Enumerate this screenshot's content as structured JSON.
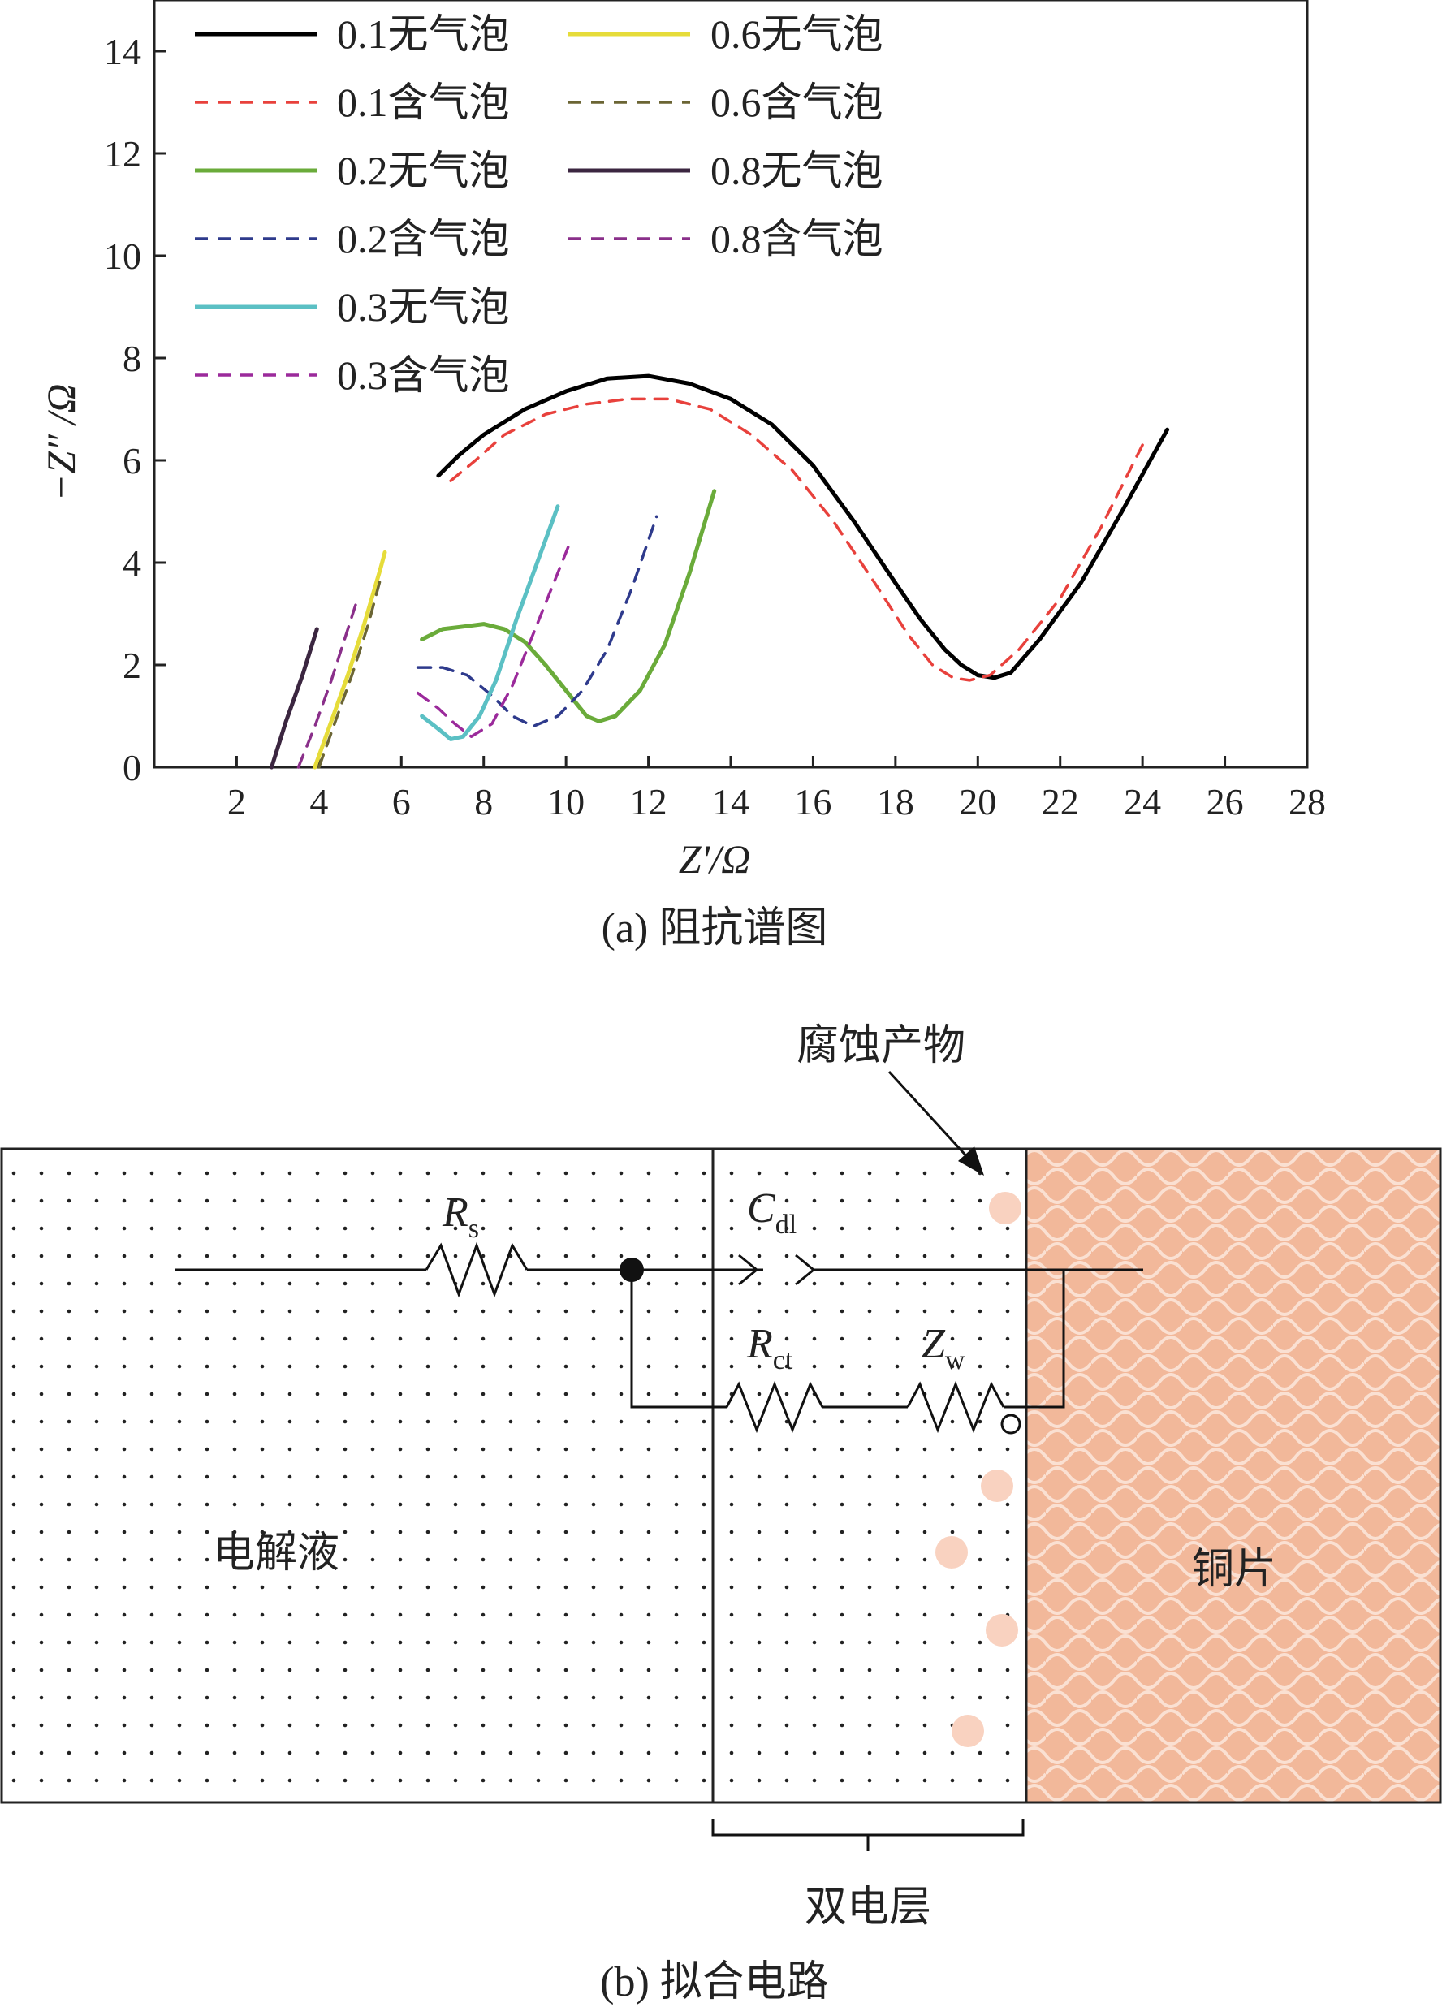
{
  "chart_data": {
    "type": "line",
    "xlabel": "Z'/Ω",
    "ylabel": "−Z″ /Ω",
    "xlim": [
      0,
      28
    ],
    "ylim": [
      0,
      15
    ],
    "xticks": [
      2,
      4,
      6,
      8,
      10,
      12,
      14,
      16,
      18,
      20,
      22,
      24,
      26,
      28
    ],
    "yticks": [
      0,
      2,
      4,
      6,
      8,
      10,
      12,
      14
    ],
    "grid": false,
    "legend": "top-left",
    "caption": "(a) 阻抗谱图",
    "series": [
      {
        "name": "0.1无气泡",
        "color": "#000000",
        "dash": "solid",
        "x": [
          6.9,
          7.4,
          8.0,
          9.0,
          10.0,
          11.0,
          12.0,
          13.0,
          14.0,
          15.0,
          16.0,
          17.0,
          18.0,
          18.6,
          19.2,
          19.6,
          20.0,
          20.4,
          20.8,
          21.5,
          22.5,
          23.5,
          24.6
        ],
        "y": [
          5.7,
          6.1,
          6.5,
          7.0,
          7.35,
          7.6,
          7.65,
          7.5,
          7.2,
          6.7,
          5.9,
          4.8,
          3.6,
          2.9,
          2.3,
          2.0,
          1.8,
          1.75,
          1.85,
          2.5,
          3.6,
          5.0,
          6.6
        ]
      },
      {
        "name": "0.1含气泡",
        "color": "#e8413c",
        "dash": "dashed",
        "x": [
          7.2,
          7.8,
          8.5,
          9.5,
          10.5,
          11.5,
          12.5,
          13.5,
          14.5,
          15.5,
          16.5,
          17.5,
          18.3,
          18.9,
          19.4,
          19.8,
          20.3,
          21.0,
          22.0,
          23.0,
          24.0
        ],
        "y": [
          5.6,
          6.0,
          6.5,
          6.9,
          7.1,
          7.2,
          7.2,
          7.0,
          6.5,
          5.8,
          4.8,
          3.6,
          2.6,
          2.0,
          1.75,
          1.7,
          1.8,
          2.3,
          3.3,
          4.7,
          6.3
        ]
      },
      {
        "name": "0.2无气泡",
        "color": "#6aab3a",
        "dash": "solid",
        "x": [
          6.5,
          7.0,
          7.5,
          8.0,
          8.5,
          9.0,
          9.5,
          10.0,
          10.5,
          10.8,
          11.2,
          11.8,
          12.4,
          13.0,
          13.6
        ],
        "y": [
          2.5,
          2.7,
          2.75,
          2.8,
          2.7,
          2.45,
          2.0,
          1.5,
          1.0,
          0.9,
          1.0,
          1.5,
          2.4,
          3.8,
          5.4
        ]
      },
      {
        "name": "0.2含气泡",
        "color": "#2e3a8c",
        "dash": "dashed",
        "x": [
          6.4,
          7.0,
          7.6,
          8.2,
          8.7,
          9.2,
          9.8,
          10.4,
          11.0,
          11.6,
          12.2
        ],
        "y": [
          1.95,
          1.95,
          1.8,
          1.4,
          1.0,
          0.8,
          1.0,
          1.5,
          2.3,
          3.5,
          4.9
        ]
      },
      {
        "name": "0.3无气泡",
        "color": "#5bc0c4",
        "dash": "solid",
        "x": [
          6.5,
          6.9,
          7.2,
          7.5,
          7.9,
          8.3,
          8.8,
          9.3,
          9.8
        ],
        "y": [
          1.0,
          0.75,
          0.55,
          0.6,
          1.0,
          1.7,
          2.9,
          4.0,
          5.1
        ]
      },
      {
        "name": "0.3含气泡",
        "color": "#9b2a9b",
        "dash": "dashed",
        "x": [
          6.4,
          6.9,
          7.3,
          7.7,
          8.2,
          8.7,
          9.2,
          9.8,
          10.1
        ],
        "y": [
          1.45,
          1.15,
          0.85,
          0.6,
          0.85,
          1.6,
          2.6,
          3.8,
          4.4
        ]
      },
      {
        "name": "0.6无气泡",
        "color": "#e6dc3a",
        "dash": "solid",
        "x": [
          3.9,
          4.3,
          4.7,
          5.1,
          5.5,
          5.6
        ],
        "y": [
          0.0,
          0.9,
          1.8,
          2.8,
          3.9,
          4.2
        ]
      },
      {
        "name": "0.6含气泡",
        "color": "#6b6534",
        "dash": "dashed",
        "x": [
          4.0,
          4.4,
          4.8,
          5.2,
          5.5
        ],
        "y": [
          0.0,
          0.9,
          1.8,
          2.8,
          3.7
        ]
      },
      {
        "name": "0.8无气泡",
        "color": "#3b2640",
        "dash": "solid",
        "x": [
          2.85,
          3.2,
          3.6,
          3.95
        ],
        "y": [
          0.0,
          0.9,
          1.8,
          2.7
        ]
      },
      {
        "name": "0.8含气泡",
        "color": "#8a2f8a",
        "dash": "dashed",
        "x": [
          3.5,
          3.9,
          4.3,
          4.7,
          4.9
        ],
        "y": [
          0.0,
          0.8,
          1.7,
          2.7,
          3.2
        ]
      }
    ]
  },
  "circuit": {
    "caption": "(b) 拟合电路",
    "electrolyte_label": "电解液",
    "copper_label": "铜片",
    "double_layer_label": "双电层",
    "corrosion_label": "腐蚀产物",
    "rs_label": "R",
    "rs_sub": "s",
    "cdl_label": "C",
    "cdl_sub": "dl",
    "rct_label": "R",
    "rct_sub": "ct",
    "zw_label": "Z",
    "zw_sub": "w",
    "colors": {
      "copper": "#f2b89a",
      "copper_pattern": "#fae0d2",
      "product": "#f9d2c0"
    }
  }
}
